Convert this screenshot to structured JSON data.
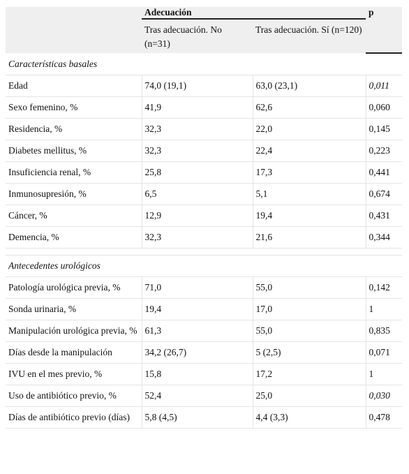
{
  "table": {
    "group_header": "Adecuación",
    "p_header": "p",
    "subheaders": [
      "Tras adecuación. No (n=31)",
      "Tras adecuación. Sí (n=120)"
    ],
    "sections": [
      {
        "title": "Características basales",
        "rows": [
          {
            "label": "Edad",
            "no": "74,0 (19,1)",
            "si": "63,0 (23,1)",
            "p": "0,011",
            "p_italic": true
          },
          {
            "label": "Sexo femenino, %",
            "no": "41,9",
            "si": "62,6",
            "p": "0,060"
          },
          {
            "label": "Residencia, %",
            "no": "32,3",
            "si": "22,0",
            "p": "0,145"
          },
          {
            "label": "Diabetes mellitus, %",
            "no": "32,3",
            "si": "22,4",
            "p": "0,223"
          },
          {
            "label": "Insuficiencia renal, %",
            "no": "25,8",
            "si": "17,3",
            "p": "0,441"
          },
          {
            "label": "Inmunosupresión, %",
            "no": "6,5",
            "si": "5,1",
            "p": "0,674"
          },
          {
            "label": "Cáncer, %",
            "no": "12,9",
            "si": "19,4",
            "p": "0,431"
          },
          {
            "label": "Demencia, %",
            "no": "32,3",
            "si": "21,6",
            "p": "0,344"
          }
        ]
      },
      {
        "title": "Antecedentes urológicos",
        "rows": [
          {
            "label": "Patología urológica previa, %",
            "no": "71,0",
            "si": "55,0",
            "p": "0,142"
          },
          {
            "label": "Sonda urinaria, %",
            "no": "19,4",
            "si": "17,0",
            "p": "1"
          },
          {
            "label": "Manipulación urológica previa, %",
            "no": "61,3",
            "si": "55,0",
            "p": "0,835"
          },
          {
            "label": "Días desde la manipulación",
            "no": "34,2 (26,7)",
            "si": "5 (2,5)",
            "p": "0,071"
          },
          {
            "label": "IVU en el mes previo, %",
            "no": "15,8",
            "si": "17,2",
            "p": "1"
          },
          {
            "label": "Uso de antibiótico previo, %",
            "no": "52,4",
            "si": "25,0",
            "p": "0,030",
            "p_italic": true
          },
          {
            "label": "Días de antibiótico previo (días)",
            "no": "5,8 (4,5)",
            "si": "4,4 (3,3)",
            "p": "0,478"
          }
        ]
      }
    ]
  }
}
